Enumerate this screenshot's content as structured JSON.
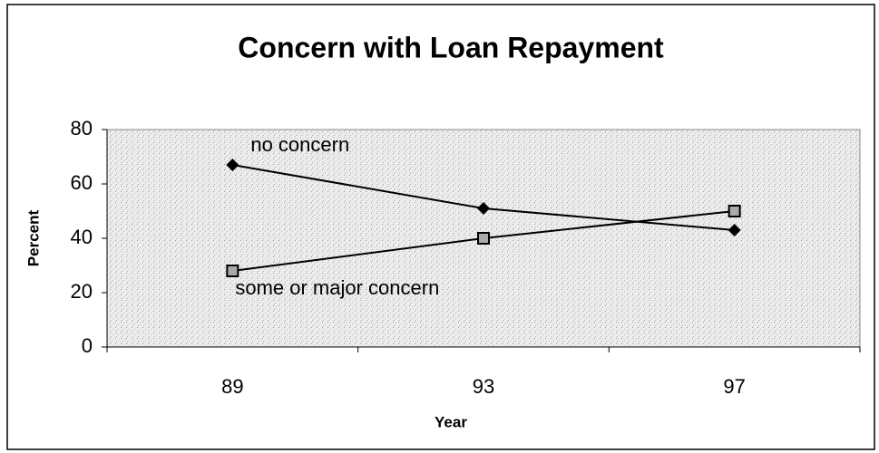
{
  "chart_data": {
    "type": "line",
    "title": "Concern with Loan Repayment",
    "x_label": "Year",
    "y_label": "Percent",
    "categories": [
      "89",
      "93",
      "97"
    ],
    "series": [
      {
        "name": "no concern",
        "color": "#000000",
        "marker": "diamond",
        "values": [
          67,
          51,
          43
        ]
      },
      {
        "name": "some or major concern",
        "color": "#000000",
        "marker": "square",
        "values": [
          28,
          40,
          50
        ]
      }
    ],
    "ylim": [
      0,
      80
    ],
    "yticks": [
      0,
      20,
      40,
      60,
      80
    ],
    "grid": false
  }
}
